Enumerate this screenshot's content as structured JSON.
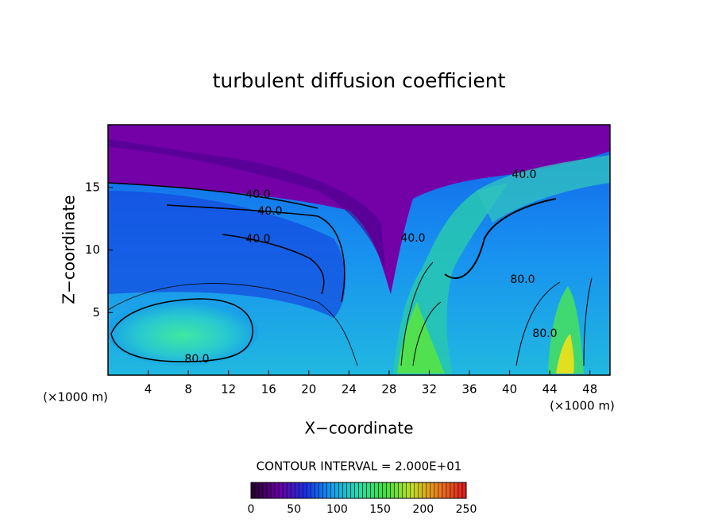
{
  "chart_data": {
    "type": "contour",
    "title": "turbulent diffusion coefficient",
    "x_label": "X−coordinate",
    "y_label": "Z−coordinate",
    "x_unit_left": "(×1000 m)",
    "x_unit_right": "(×1000 m)",
    "contour_interval": "CONTOUR INTERVAL = 2.000E+01",
    "xlim": [
      0,
      50
    ],
    "xticks": [
      4,
      8,
      12,
      16,
      20,
      24,
      28,
      32,
      36,
      40,
      44,
      48
    ],
    "ylim": [
      0,
      20
    ],
    "yticks": [
      5,
      10,
      15
    ],
    "contour_labels": [
      "40.0",
      "40.0",
      "40.0",
      "40.0",
      "80.0",
      "40.0",
      "80.0",
      "80.0"
    ],
    "colorbar": {
      "lim": [
        0,
        250
      ],
      "ticks": [
        0,
        50,
        100,
        150,
        200,
        250
      ],
      "colors": [
        "#2a0033",
        "#6a00a8",
        "#1a30e0",
        "#10a0f0",
        "#20e0b0",
        "#40e040",
        "#c0e020",
        "#f08020",
        "#e02020"
      ]
    }
  }
}
